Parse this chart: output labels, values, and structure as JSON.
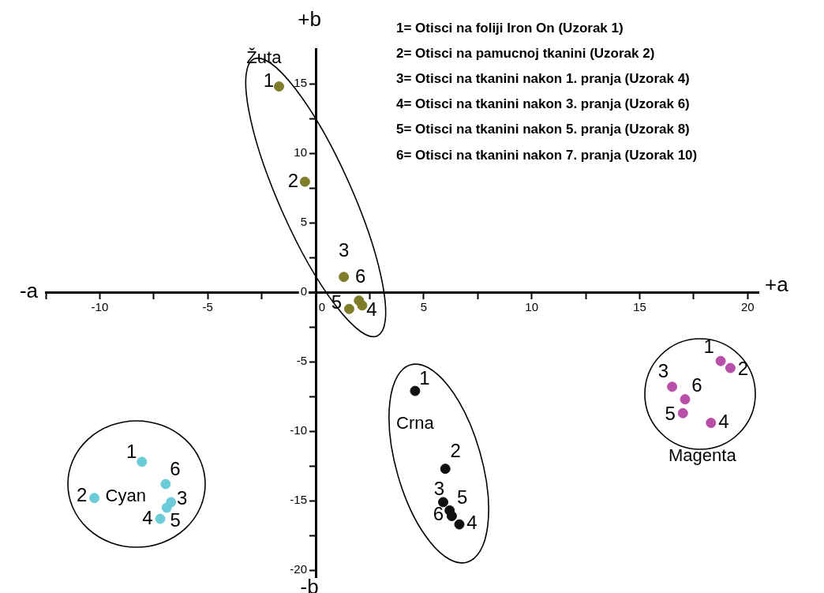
{
  "chart_data": {
    "type": "scatter",
    "xlabel": "+a",
    "ylabel": "+b",
    "annotations": [
      "-a",
      "-b",
      "1= Otisci na foliji Iron On (Uzorak 1)",
      "2= Otisci na pamucnoj tkanini (Uzorak 2)",
      "3= Otisci na tkanini nakon 1. pranja (Uzorak 4)",
      "4= Otisci na tkanini nakon 3. pranja (Uzorak 6)",
      "5= Otisci na tkanini nakon 5. pranja (Uzorak 8)",
      "6= Otisci na tkanini nakon 7. pranja (Uzorak 10)",
      {
        "text": "1",
        "x": -1.7,
        "y": 14.8
      },
      {
        "text": "2",
        "x": -0.5,
        "y": 7.95
      },
      {
        "text": "3",
        "x": 1.3,
        "y": 1.1
      },
      {
        "text": "4",
        "x": 2.15,
        "y": -0.95
      },
      {
        "text": "5",
        "x": 1.55,
        "y": -1.2
      },
      {
        "text": "6",
        "x": 2.0,
        "y": -0.6
      },
      {
        "text": "1",
        "x": -8.05,
        "y": -12.2
      },
      {
        "text": "2",
        "x": -10.25,
        "y": -14.8
      },
      {
        "text": "3",
        "x": -6.7,
        "y": -15.1
      },
      {
        "text": "4",
        "x": -7.2,
        "y": -16.3
      },
      {
        "text": "5",
        "x": -6.9,
        "y": -15.5
      },
      {
        "text": "6",
        "x": -6.95,
        "y": -13.8
      },
      {
        "text": "1",
        "x": 4.6,
        "y": -7.1
      },
      {
        "text": "2",
        "x": 6.0,
        "y": -12.7
      },
      {
        "text": "3",
        "x": 5.9,
        "y": -15.1
      },
      {
        "text": "4",
        "x": 6.65,
        "y": -16.7
      },
      {
        "text": "5",
        "x": 6.2,
        "y": -15.7
      },
      {
        "text": "6",
        "x": 6.3,
        "y": -16.1
      },
      {
        "text": "1",
        "x": 18.75,
        "y": -4.95
      },
      {
        "text": "2",
        "x": 19.2,
        "y": -5.45
      },
      {
        "text": "3",
        "x": 16.5,
        "y": -6.8
      },
      {
        "text": "4",
        "x": 18.3,
        "y": -9.4
      },
      {
        "text": "5",
        "x": 17.0,
        "y": -8.7
      },
      {
        "text": "6",
        "x": 17.1,
        "y": -7.7
      }
    ],
    "xlim": [
      -12.5,
      20.5
    ],
    "ylim": [
      -20.5,
      17.5
    ],
    "xticks": [
      {
        "value": -12.5,
        "label": null
      },
      -10,
      {
        "value": -7.5,
        "label": null
      },
      -5,
      {
        "value": -2.5,
        "label": null
      },
      0,
      {
        "value": 2.5,
        "label": null
      },
      5,
      {
        "value": 7.5,
        "label": null
      },
      10,
      {
        "value": 12.5,
        "label": null
      },
      15,
      {
        "value": 17.5,
        "label": null
      },
      20
    ],
    "yticks": [
      -20,
      {
        "value": -17.5,
        "label": null
      },
      -15,
      {
        "value": -12.5,
        "label": null
      },
      -10,
      {
        "value": -7.5,
        "label": null
      },
      -5,
      {
        "value": -2.5,
        "label": null
      },
      0,
      {
        "value": 2.5,
        "label": null
      },
      5,
      {
        "value": 7.5,
        "label": null
      },
      10,
      {
        "value": 12.5,
        "label": null
      },
      15
    ],
    "grid": false,
    "legend": false,
    "marker": "circle",
    "series": [
      {
        "name": "Žuta",
        "color": "#7f7c2a",
        "x": [
          -1.7,
          -0.5,
          1.3,
          2.15,
          1.55,
          2.0
        ],
        "values": [
          14.8,
          7.95,
          1.1,
          -0.95,
          -1.2,
          -0.6
        ]
      },
      {
        "name": "Cyan",
        "color": "#6ccbd8",
        "x": [
          -8.05,
          -10.25,
          -6.7,
          -7.2,
          -6.9,
          -6.95
        ],
        "values": [
          -12.2,
          -14.8,
          -15.1,
          -16.3,
          -15.5,
          -13.8
        ]
      },
      {
        "name": "Crna",
        "color": "#111111",
        "x": [
          4.6,
          6.0,
          5.9,
          6.65,
          6.2,
          6.3
        ],
        "values": [
          -7.1,
          -12.7,
          -15.1,
          -16.7,
          -15.7,
          -16.1
        ]
      },
      {
        "name": "Magenta",
        "color": "#b84fa8",
        "x": [
          18.75,
          19.2,
          16.5,
          18.3,
          17.0,
          17.1
        ],
        "values": [
          -4.95,
          -5.45,
          -6.8,
          -9.4,
          -8.7,
          -7.7
        ]
      }
    ]
  }
}
